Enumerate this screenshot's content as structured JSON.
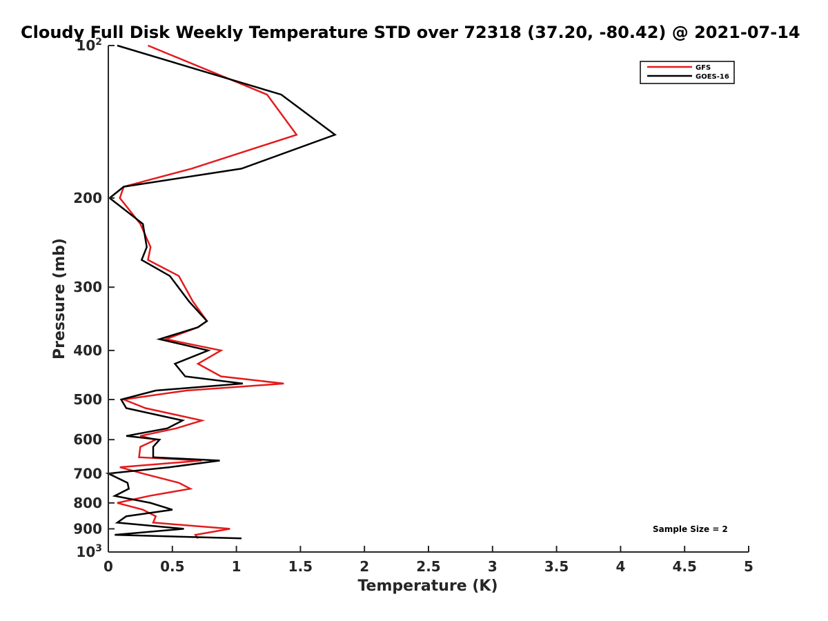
{
  "chart_data": {
    "type": "line",
    "title": "Cloudy Full Disk Weekly Temperature STD over 72318 (37.20, -80.42) @ 2021-07-14",
    "xlabel": "Temperature (K)",
    "ylabel": "Pressure (mb)",
    "xlim": [
      0,
      5
    ],
    "ylim": [
      100,
      1000
    ],
    "yscale": "log",
    "y_reversed": true,
    "x_ticks": [
      "0",
      "0.5",
      "1",
      "1.5",
      "2",
      "2.5",
      "3",
      "3.5",
      "4",
      "4.5",
      "5"
    ],
    "y_ticks": [
      {
        "value": 100,
        "base": "10",
        "exp": "2"
      },
      {
        "value": 200,
        "label": "200"
      },
      {
        "value": 300,
        "label": "300"
      },
      {
        "value": 400,
        "label": "400"
      },
      {
        "value": 500,
        "label": "500"
      },
      {
        "value": 600,
        "label": "600"
      },
      {
        "value": 700,
        "label": "700"
      },
      {
        "value": 800,
        "label": "800"
      },
      {
        "value": 900,
        "label": "900"
      },
      {
        "value": 1000,
        "base": "10",
        "exp": "3"
      }
    ],
    "legend_position": "top-right",
    "annotation": "Sample Size = 2",
    "series": [
      {
        "name": "GFS",
        "color": "#e41a1c",
        "points": [
          [
            0.31,
            100
          ],
          [
            1.24,
            125
          ],
          [
            1.47,
            150
          ],
          [
            0.65,
            175
          ],
          [
            0.12,
            190
          ],
          [
            0.09,
            200
          ],
          [
            0.25,
            225
          ],
          [
            0.33,
            250
          ],
          [
            0.31,
            265
          ],
          [
            0.55,
            285
          ],
          [
            0.66,
            320
          ],
          [
            0.77,
            350
          ],
          [
            0.7,
            360
          ],
          [
            0.45,
            380
          ],
          [
            0.88,
            400
          ],
          [
            0.7,
            425
          ],
          [
            0.88,
            450
          ],
          [
            1.37,
            465
          ],
          [
            0.61,
            480
          ],
          [
            0.12,
            500
          ],
          [
            0.29,
            520
          ],
          [
            0.73,
            550
          ],
          [
            0.53,
            570
          ],
          [
            0.25,
            590
          ],
          [
            0.37,
            600
          ],
          [
            0.25,
            620
          ],
          [
            0.24,
            650
          ],
          [
            0.73,
            660
          ],
          [
            0.09,
            680
          ],
          [
            0.27,
            700
          ],
          [
            0.55,
            730
          ],
          [
            0.64,
            750
          ],
          [
            0.32,
            775
          ],
          [
            0.07,
            800
          ],
          [
            0.27,
            825
          ],
          [
            0.37,
            850
          ],
          [
            0.35,
            875
          ],
          [
            0.95,
            900
          ],
          [
            0.68,
            925
          ],
          [
            0.7,
            940
          ]
        ]
      },
      {
        "name": "GOES-16",
        "color": "#000000",
        "points": [
          [
            0.07,
            100
          ],
          [
            1.35,
            125
          ],
          [
            1.77,
            150
          ],
          [
            1.04,
            175
          ],
          [
            0.12,
            190
          ],
          [
            0.01,
            200
          ],
          [
            0.27,
            225
          ],
          [
            0.3,
            250
          ],
          [
            0.26,
            265
          ],
          [
            0.48,
            285
          ],
          [
            0.63,
            320
          ],
          [
            0.77,
            350
          ],
          [
            0.7,
            360
          ],
          [
            0.4,
            380
          ],
          [
            0.78,
            400
          ],
          [
            0.52,
            425
          ],
          [
            0.6,
            450
          ],
          [
            1.05,
            465
          ],
          [
            0.37,
            480
          ],
          [
            0.1,
            500
          ],
          [
            0.14,
            520
          ],
          [
            0.58,
            550
          ],
          [
            0.46,
            570
          ],
          [
            0.14,
            590
          ],
          [
            0.4,
            600
          ],
          [
            0.35,
            620
          ],
          [
            0.35,
            650
          ],
          [
            0.87,
            660
          ],
          [
            0.48,
            680
          ],
          [
            0.0,
            700
          ],
          [
            0.15,
            730
          ],
          [
            0.16,
            750
          ],
          [
            0.05,
            775
          ],
          [
            0.33,
            800
          ],
          [
            0.5,
            825
          ],
          [
            0.14,
            850
          ],
          [
            0.07,
            875
          ],
          [
            0.59,
            900
          ],
          [
            0.05,
            925
          ],
          [
            1.04,
            940
          ]
        ]
      }
    ]
  }
}
